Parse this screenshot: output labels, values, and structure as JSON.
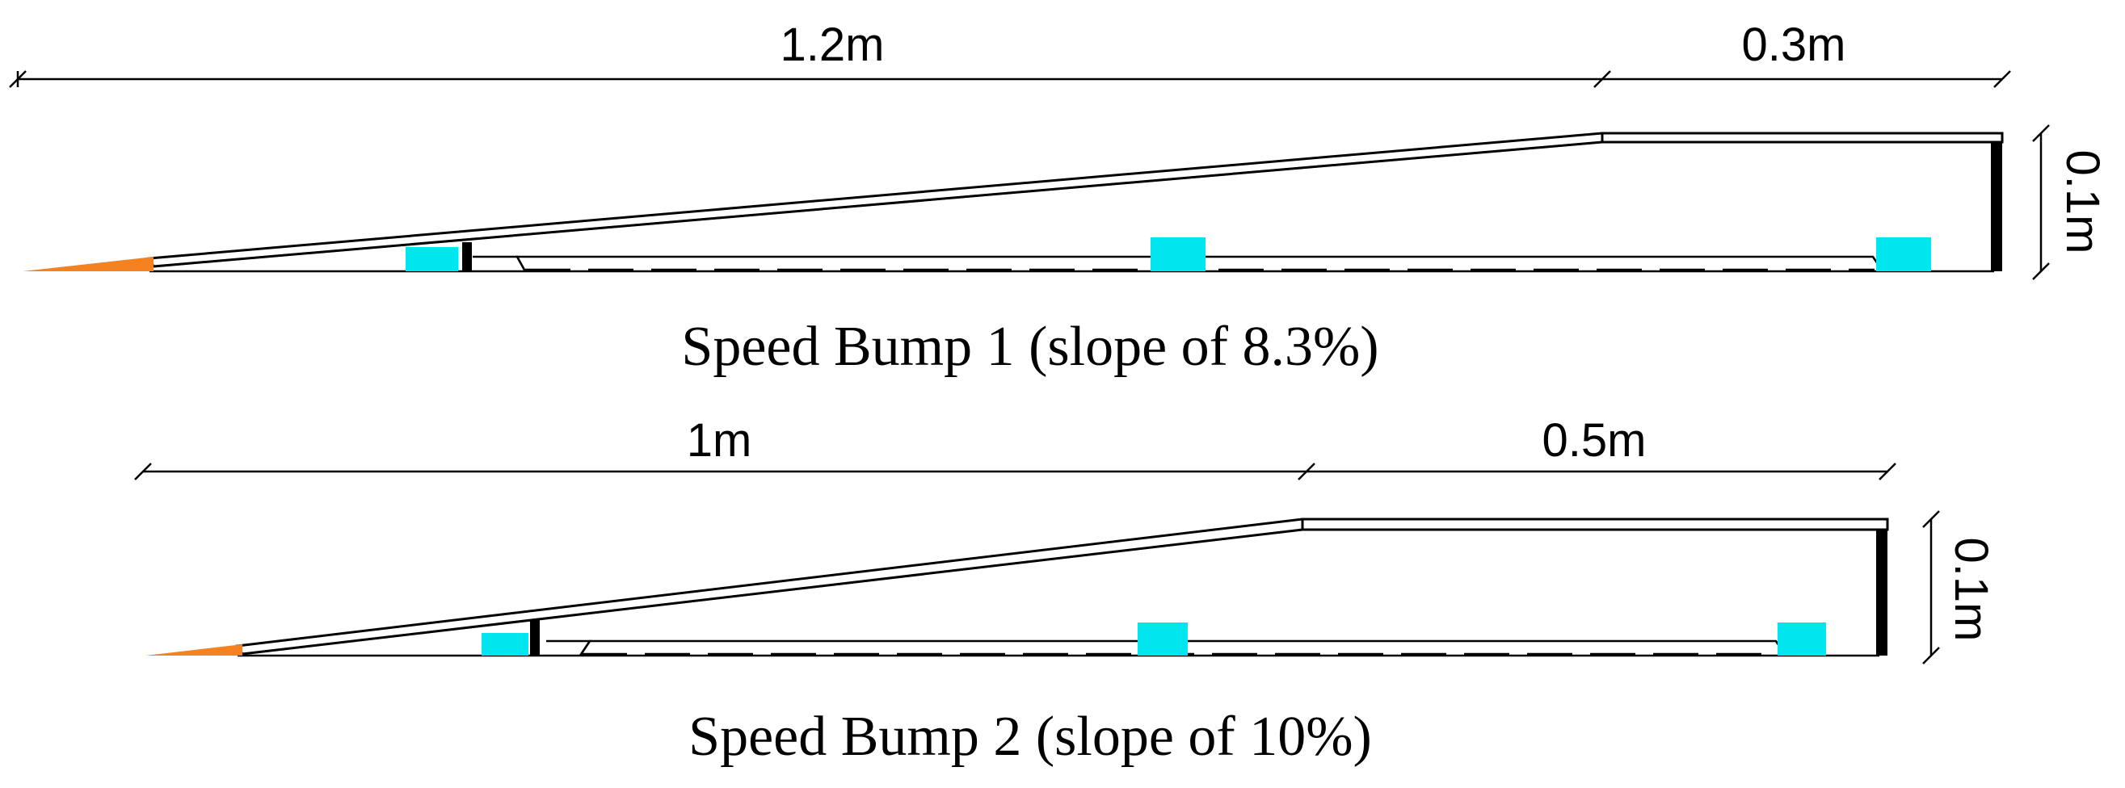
{
  "bump1": {
    "dim_length": "1.2m",
    "dim_top": "0.3m",
    "dim_height": "0.1m",
    "caption": "Speed Bump 1 (slope of 8.3%)"
  },
  "bump2": {
    "dim_length": "1m",
    "dim_top": "0.5m",
    "dim_height": "0.1m",
    "caption": "Speed Bump 2 (slope of 10%)"
  },
  "colors": {
    "block": "#00e5ee",
    "tip": "#f58220",
    "line": "#000000"
  }
}
